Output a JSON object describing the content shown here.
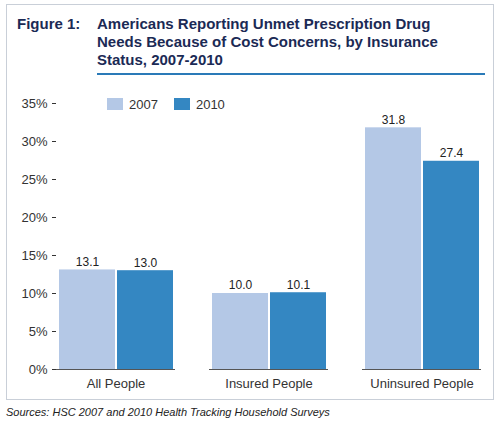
{
  "chart_data": {
    "type": "bar",
    "figure_label": "Figure 1:",
    "title": "Americans Reporting Unmet Prescription Drug Needs Because of Cost Concerns, by Insurance Status, 2007-2010",
    "caption": "Sources: HSC 2007 and 2010 Health Tracking Household Surveys",
    "categories": [
      "All People",
      "Insured People",
      "Uninsured People"
    ],
    "series": [
      {
        "name": "2007",
        "color": "#b4c8e6",
        "values": [
          13.1,
          10.0,
          31.8
        ],
        "value_labels": [
          "13.1",
          "10.0",
          "31.8"
        ]
      },
      {
        "name": "2010",
        "color": "#3487c2",
        "values": [
          13.0,
          10.1,
          27.4
        ],
        "value_labels": [
          "13.0",
          "10.1",
          "27.4"
        ]
      }
    ],
    "ylim": [
      0,
      35
    ],
    "yticks": [
      {
        "value": 0,
        "label": "0%"
      },
      {
        "value": 5,
        "label": "5%"
      },
      {
        "value": 10,
        "label": "10%"
      },
      {
        "value": 15,
        "label": "15%"
      },
      {
        "value": 20,
        "label": "20%"
      },
      {
        "value": 25,
        "label": "25%"
      },
      {
        "value": 30,
        "label": "30%"
      },
      {
        "value": 35,
        "label": "35%"
      }
    ],
    "grid": false,
    "legend": "top-left",
    "data_labels": true
  }
}
